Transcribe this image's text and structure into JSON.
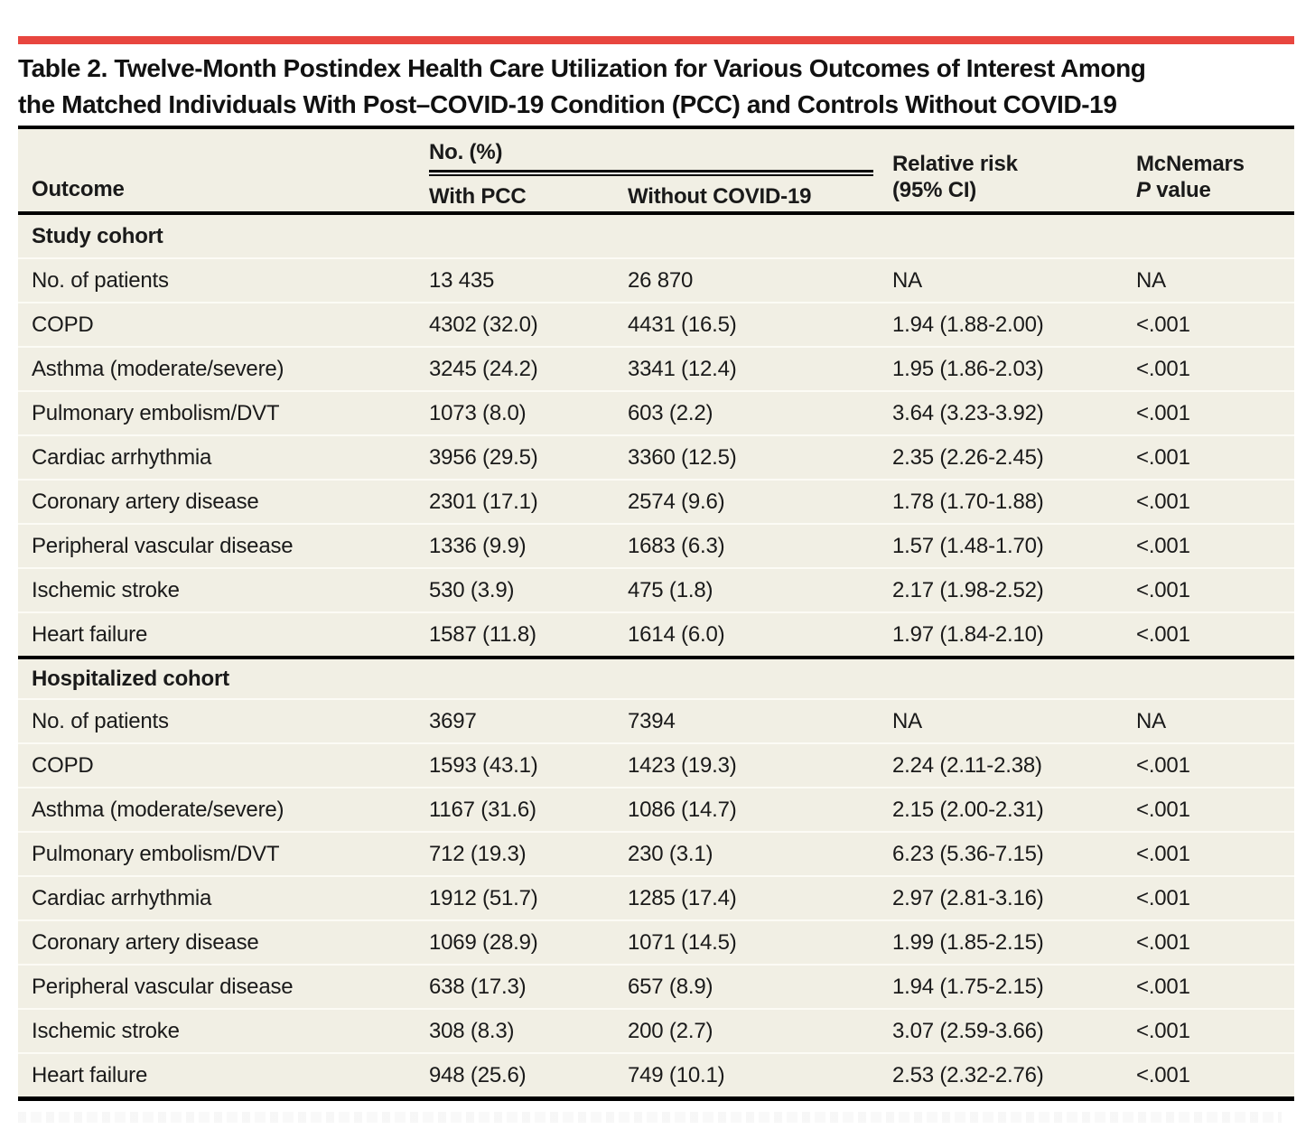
{
  "accent_color": "#e8463f",
  "table_background_color": "#f1efe4",
  "rule_color": "#000000",
  "title_line1": "Table 2. Twelve-Month Postindex Health Care Utilization for Various Outcomes of Interest Among",
  "title_line2": "the Matched Individuals With Post–COVID-19 Condition (PCC) and Controls Without COVID-19",
  "header": {
    "outcome": "Outcome",
    "group_label": "No. (%)",
    "with_pcc": "With PCC",
    "without_covid": "Without COVID-19",
    "relative_risk_line1": "Relative risk",
    "relative_risk_line2": "(95% CI)",
    "p_line1": "McNemars",
    "p_line2_italic": "P",
    "p_line2_rest": " value"
  },
  "sections": [
    {
      "label": "Study cohort",
      "rows": [
        {
          "outcome": "No. of patients",
          "with_pcc": "13 435",
          "without_covid": "26 870",
          "relative_risk": "NA",
          "p_value": "NA"
        },
        {
          "outcome": "COPD",
          "with_pcc": "4302 (32.0)",
          "without_covid": "4431 (16.5)",
          "relative_risk": "1.94 (1.88-2.00)",
          "p_value": "<.001"
        },
        {
          "outcome": "Asthma (moderate/severe)",
          "with_pcc": "3245 (24.2)",
          "without_covid": "3341 (12.4)",
          "relative_risk": "1.95 (1.86-2.03)",
          "p_value": "<.001"
        },
        {
          "outcome": "Pulmonary embolism/DVT",
          "with_pcc": "1073 (8.0)",
          "without_covid": "603 (2.2)",
          "relative_risk": "3.64 (3.23-3.92)",
          "p_value": "<.001"
        },
        {
          "outcome": "Cardiac arrhythmia",
          "with_pcc": "3956 (29.5)",
          "without_covid": "3360 (12.5)",
          "relative_risk": "2.35 (2.26-2.45)",
          "p_value": "<.001"
        },
        {
          "outcome": "Coronary artery disease",
          "with_pcc": "2301 (17.1)",
          "without_covid": "2574 (9.6)",
          "relative_risk": "1.78 (1.70-1.88)",
          "p_value": "<.001"
        },
        {
          "outcome": "Peripheral vascular disease",
          "with_pcc": "1336 (9.9)",
          "without_covid": "1683 (6.3)",
          "relative_risk": "1.57 (1.48-1.70)",
          "p_value": "<.001"
        },
        {
          "outcome": "Ischemic stroke",
          "with_pcc": "530 (3.9)",
          "without_covid": "475 (1.8)",
          "relative_risk": "2.17 (1.98-2.52)",
          "p_value": "<.001"
        },
        {
          "outcome": "Heart failure",
          "with_pcc": "1587 (11.8)",
          "without_covid": "1614 (6.0)",
          "relative_risk": "1.97 (1.84-2.10)",
          "p_value": "<.001"
        }
      ]
    },
    {
      "label": "Hospitalized cohort",
      "rows": [
        {
          "outcome": "No. of patients",
          "with_pcc": "3697",
          "without_covid": "7394",
          "relative_risk": "NA",
          "p_value": "NA"
        },
        {
          "outcome": "COPD",
          "with_pcc": "1593 (43.1)",
          "without_covid": "1423 (19.3)",
          "relative_risk": "2.24 (2.11-2.38)",
          "p_value": "<.001"
        },
        {
          "outcome": "Asthma (moderate/severe)",
          "with_pcc": "1167 (31.6)",
          "without_covid": "1086 (14.7)",
          "relative_risk": "2.15 (2.00-2.31)",
          "p_value": "<.001"
        },
        {
          "outcome": "Pulmonary embolism/DVT",
          "with_pcc": "712 (19.3)",
          "without_covid": "230 (3.1)",
          "relative_risk": "6.23 (5.36-7.15)",
          "p_value": "<.001"
        },
        {
          "outcome": "Cardiac arrhythmia",
          "with_pcc": "1912 (51.7)",
          "without_covid": "1285 (17.4)",
          "relative_risk": "2.97 (2.81-3.16)",
          "p_value": "<.001"
        },
        {
          "outcome": "Coronary artery disease",
          "with_pcc": "1069 (28.9)",
          "without_covid": "1071 (14.5)",
          "relative_risk": "1.99 (1.85-2.15)",
          "p_value": "<.001"
        },
        {
          "outcome": "Peripheral vascular disease",
          "with_pcc": "638 (17.3)",
          "without_covid": "657 (8.9)",
          "relative_risk": "1.94 (1.75-2.15)",
          "p_value": "<.001"
        },
        {
          "outcome": "Ischemic stroke",
          "with_pcc": "308 (8.3)",
          "without_covid": "200 (2.7)",
          "relative_risk": "3.07 (2.59-3.66)",
          "p_value": "<.001"
        },
        {
          "outcome": "Heart failure",
          "with_pcc": "948 (25.6)",
          "without_covid": "749 (10.1)",
          "relative_risk": "2.53 (2.32-2.76)",
          "p_value": "<.001"
        }
      ]
    }
  ]
}
